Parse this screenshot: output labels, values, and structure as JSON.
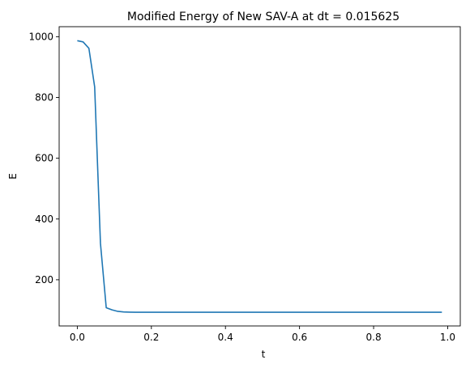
{
  "chart_data": {
    "type": "line",
    "title": "Modified Energy of New SAV-A at dt = 0.015625",
    "xlabel": "t",
    "ylabel": "E",
    "xlim": [
      -0.049,
      1.034
    ],
    "ylim": [
      48,
      1033
    ],
    "xticks": [
      0.0,
      0.2,
      0.4,
      0.6,
      0.8,
      1.0
    ],
    "xtick_labels": [
      "0.0",
      "0.2",
      "0.4",
      "0.6",
      "0.8",
      "1.0"
    ],
    "yticks": [
      200,
      400,
      600,
      800,
      1000
    ],
    "ytick_labels": [
      "200",
      "400",
      "600",
      "800",
      "1000"
    ],
    "grid": false,
    "series": [
      {
        "color": "#1f77b4",
        "x": [
          0.0,
          0.015625,
          0.03125,
          0.046875,
          0.0625,
          0.078125,
          0.09375,
          0.109375,
          0.125,
          0.140625,
          0.15625,
          0.171875,
          0.1875,
          0.203125,
          0.21875,
          0.234375,
          0.25,
          0.265625,
          0.28125,
          0.296875,
          0.3125,
          0.328125,
          0.34375,
          0.359375,
          0.375,
          0.390625,
          0.40625,
          0.421875,
          0.4375,
          0.453125,
          0.46875,
          0.484375,
          0.5,
          0.515625,
          0.53125,
          0.546875,
          0.5625,
          0.578125,
          0.59375,
          0.609375,
          0.625,
          0.640625,
          0.65625,
          0.671875,
          0.6875,
          0.703125,
          0.71875,
          0.734375,
          0.75,
          0.765625,
          0.78125,
          0.796875,
          0.8125,
          0.828125,
          0.84375,
          0.859375,
          0.875,
          0.890625,
          0.90625,
          0.921875,
          0.9375,
          0.953125,
          0.96875,
          0.984375
        ],
        "y": [
          987,
          983,
          962,
          835,
          320,
          108,
          101,
          96,
          94,
          93.5,
          93.2,
          93,
          93,
          93,
          93,
          93,
          93,
          93,
          93,
          93,
          93,
          93,
          93,
          93,
          93,
          93,
          93,
          93,
          93,
          93,
          93,
          93,
          93,
          93,
          93,
          93,
          93,
          93,
          93,
          93,
          93,
          93,
          93,
          93,
          93,
          93,
          93,
          93,
          93,
          93,
          93,
          93,
          93,
          93,
          93,
          93,
          93,
          93,
          93,
          93,
          93,
          93,
          93,
          93
        ]
      }
    ]
  }
}
